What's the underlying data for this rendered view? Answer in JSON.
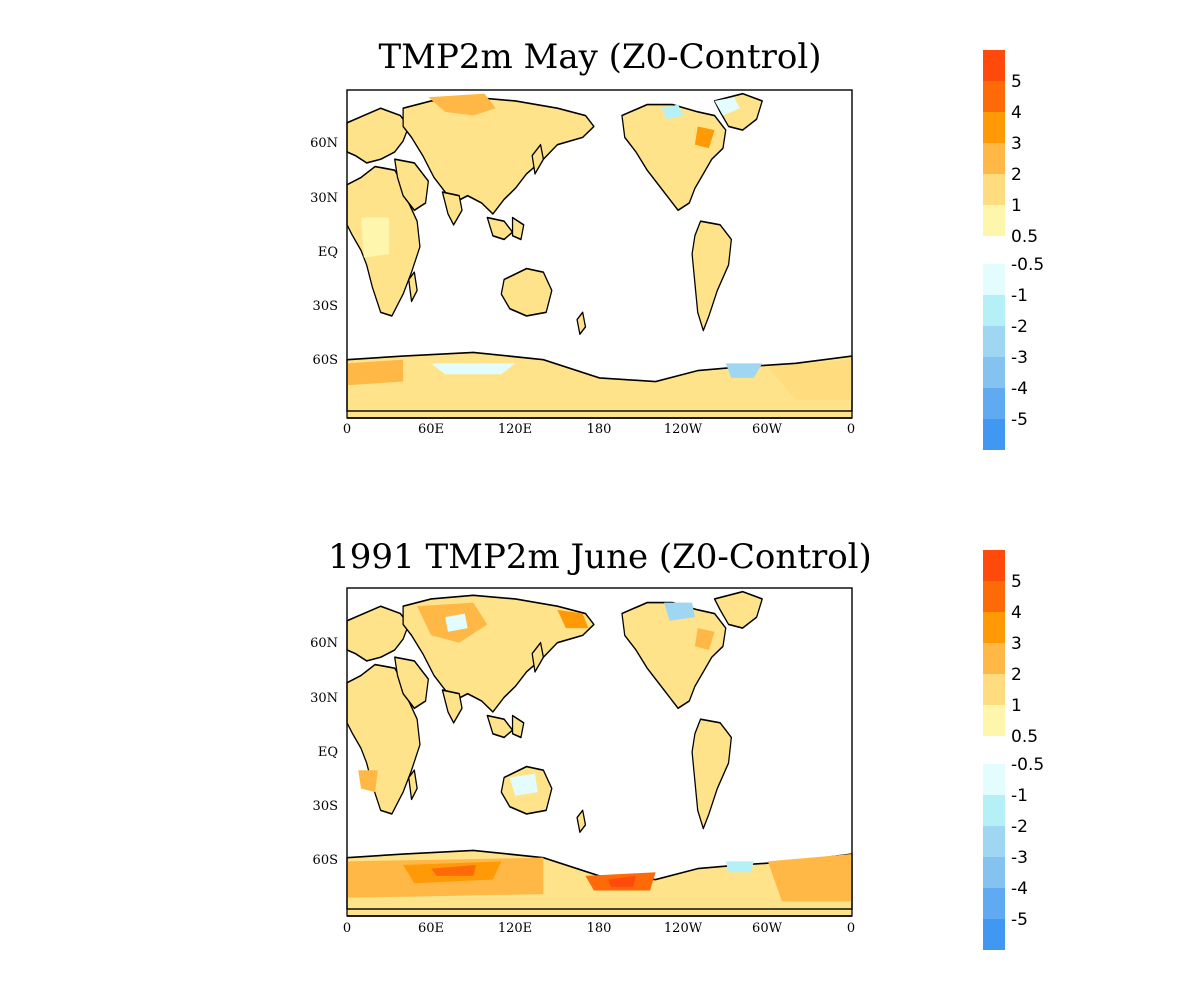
{
  "panels": [
    {
      "title": "TMP2m May (Z0-Control)",
      "x_ticks": [
        "0",
        "60E",
        "120E",
        "180",
        "120W",
        "60W",
        "0"
      ],
      "y_ticks": [
        "60N",
        "30N",
        "EQ",
        "30S",
        "60S"
      ],
      "legend_labels": [
        "5",
        "4",
        "3",
        "2",
        "1",
        "0.5",
        "-0.5",
        "-1",
        "-2",
        "-3",
        "-4",
        "-5"
      ],
      "anomaly_pattern": "weak warming over most land, warm spot over eastern North America and Siberia, slight cooling over Greenland/northern Canada"
    },
    {
      "title": "1991 TMP2m June (Z0-Control)",
      "x_ticks": [
        "0",
        "60E",
        "120E",
        "180",
        "120W",
        "60W",
        "0"
      ],
      "y_ticks": [
        "60N",
        "30N",
        "EQ",
        "30S",
        "60S"
      ],
      "legend_labels": [
        "5",
        "4",
        "3",
        "2",
        "1",
        "0.5",
        "-0.5",
        "-1",
        "-2",
        "-3",
        "-4",
        "-5"
      ],
      "anomaly_pattern": "stronger warming over Antarctica and central Asia, slight cooling over northern Canada and central Siberia"
    }
  ],
  "colorbar": {
    "warm_colors": [
      "#ff4a0b",
      "#ff6a08",
      "#ff9a06",
      "#ffb845",
      "#ffdc7d",
      "#fff6ad"
    ],
    "cool_colors": [
      "#e3fdff",
      "#b5f0f7",
      "#9fd6f2",
      "#84c2f0",
      "#5faaf1",
      "#4198f3"
    ]
  },
  "colors": {
    "ocean": "#ffffff",
    "land_base": "#ffe38a",
    "coast": "#000000"
  }
}
